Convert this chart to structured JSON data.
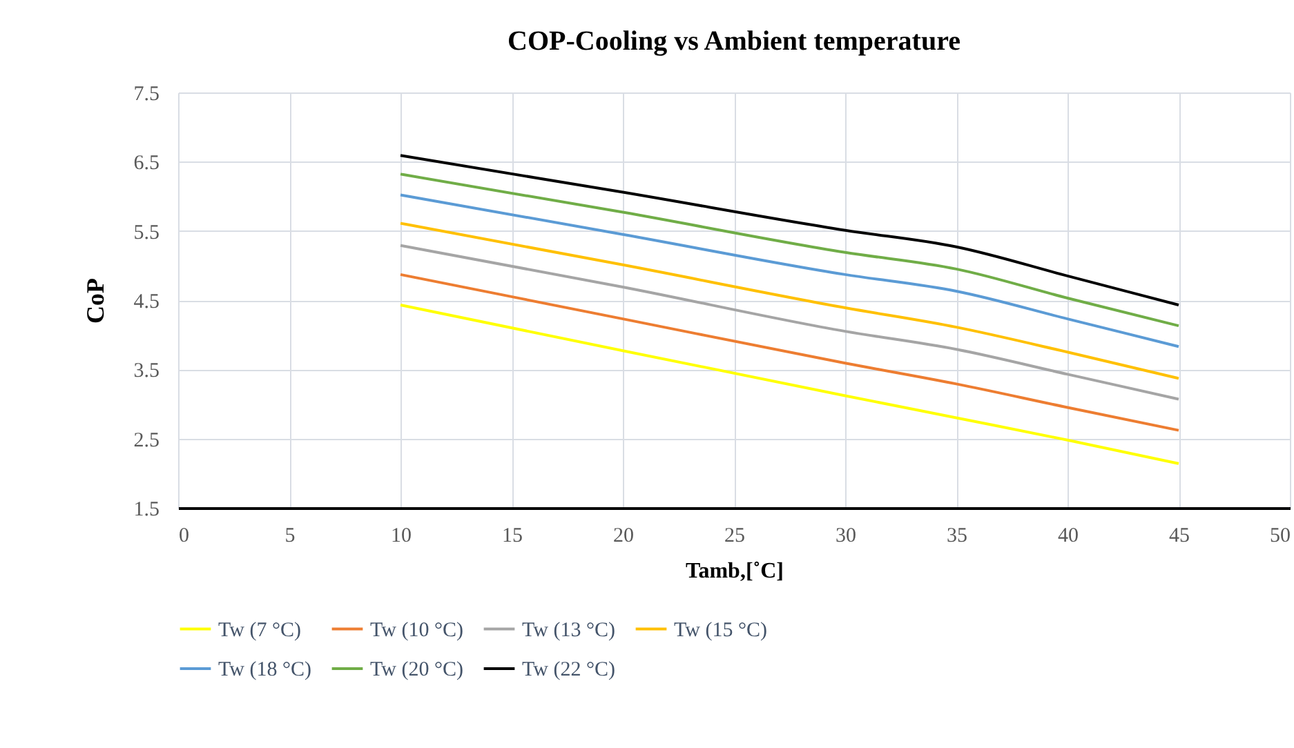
{
  "chart_data": {
    "type": "line",
    "title": "COP-Cooling vs Ambient temperature",
    "xlabel": "Tamb,[˚C]",
    "ylabel": "CoP",
    "x": [
      10,
      20,
      30,
      35,
      40,
      45
    ],
    "series": [
      {
        "name": "Tw (7 °C)",
        "color": "#ffff00",
        "values": [
          4.43,
          3.77,
          3.12,
          2.8,
          2.48,
          2.14
        ]
      },
      {
        "name": "Tw (10 °C)",
        "color": "#ed7d31",
        "values": [
          4.87,
          4.23,
          3.59,
          3.29,
          2.95,
          2.62
        ]
      },
      {
        "name": "Tw (13 °C)",
        "color": "#a5a5a5",
        "values": [
          5.29,
          4.69,
          4.05,
          3.79,
          3.43,
          3.07
        ]
      },
      {
        "name": "Tw (15 °C)",
        "color": "#ffc000",
        "values": [
          5.61,
          5.01,
          4.39,
          4.11,
          3.75,
          3.37
        ]
      },
      {
        "name": "Tw (18 °C)",
        "color": "#5b9bd5",
        "values": [
          6.02,
          5.45,
          4.87,
          4.63,
          4.23,
          3.83
        ]
      },
      {
        "name": "Tw (20 °C)",
        "color": "#70ad47",
        "values": [
          6.32,
          5.77,
          5.19,
          4.95,
          4.53,
          4.13
        ]
      },
      {
        "name": "Tw (22 °C)",
        "color": "#000000",
        "values": [
          6.59,
          6.06,
          5.51,
          5.27,
          4.85,
          4.43
        ]
      }
    ],
    "xlim": [
      0,
      50
    ],
    "xticks": [
      0,
      5,
      10,
      15,
      20,
      25,
      30,
      35,
      40,
      45,
      50
    ],
    "ylim": [
      1.5,
      7.5
    ],
    "yticks": [
      1.5,
      2.5,
      3.5,
      4.5,
      5.5,
      6.5,
      7.5
    ],
    "grid": true,
    "legend": "bottom",
    "marker": "none",
    "line_style": "solid"
  }
}
